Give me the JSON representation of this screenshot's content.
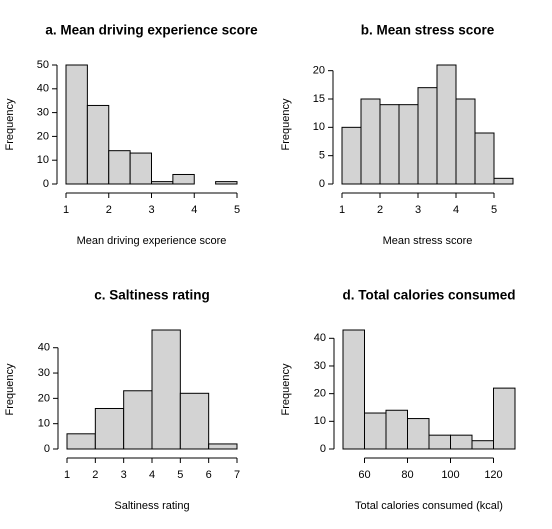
{
  "chart_data": [
    {
      "type": "histogram",
      "title": "a. Mean driving experience score",
      "xlabel": "Mean driving experience score",
      "ylabel": "Frequency",
      "bins": [
        1,
        1.5,
        2,
        2.5,
        3,
        3.5,
        4,
        4.5,
        5
      ],
      "values": [
        50,
        33,
        14,
        13,
        1,
        4,
        0,
        1
      ],
      "color": "#d3d3d3",
      "xlim": [
        1,
        5
      ],
      "xticks": [
        1,
        2,
        3,
        4,
        5
      ],
      "ylim": [
        0,
        50
      ],
      "yticks": [
        0,
        10,
        20,
        30,
        40,
        50
      ]
    },
    {
      "type": "histogram",
      "title": "b. Mean stress score",
      "xlabel": "Mean stress score",
      "ylabel": "Frequency",
      "bins": [
        1,
        1.5,
        2,
        2.5,
        3,
        3.5,
        4,
        4.5,
        5,
        5.5
      ],
      "values": [
        10,
        15,
        14,
        14,
        17,
        21,
        15,
        9,
        1
      ],
      "color": "#d3d3d3",
      "xlim": [
        1,
        5.5
      ],
      "xticks": [
        1,
        2,
        3,
        4,
        5
      ],
      "ylim": [
        0,
        21
      ],
      "yticks": [
        0,
        5,
        10,
        15,
        20
      ]
    },
    {
      "type": "histogram",
      "title": "c. Saltiness rating",
      "xlabel": "Saltiness rating",
      "ylabel": "Frequency",
      "bins": [
        1,
        2,
        3,
        4,
        5,
        6,
        7
      ],
      "values": [
        6,
        16,
        23,
        47,
        22,
        2
      ],
      "color": "#d3d3d3",
      "xlim": [
        1,
        7
      ],
      "xticks": [
        1,
        2,
        3,
        4,
        5,
        6,
        7
      ],
      "ylim": [
        0,
        47
      ],
      "yticks": [
        0,
        10,
        20,
        30,
        40
      ]
    },
    {
      "type": "histogram",
      "title": "d. Total calories consumed",
      "xlabel": "Total calories consumed (kcal)",
      "ylabel": "Frequency",
      "bins": [
        50,
        60,
        70,
        80,
        90,
        100,
        110,
        120,
        130
      ],
      "values": [
        43,
        13,
        14,
        11,
        5,
        5,
        3,
        22
      ],
      "color": "#d3d3d3",
      "xlim": [
        50,
        130
      ],
      "xticks": [
        60,
        80,
        100,
        120
      ],
      "ylim": [
        0,
        43
      ],
      "yticks": [
        0,
        10,
        20,
        30,
        40
      ]
    }
  ]
}
